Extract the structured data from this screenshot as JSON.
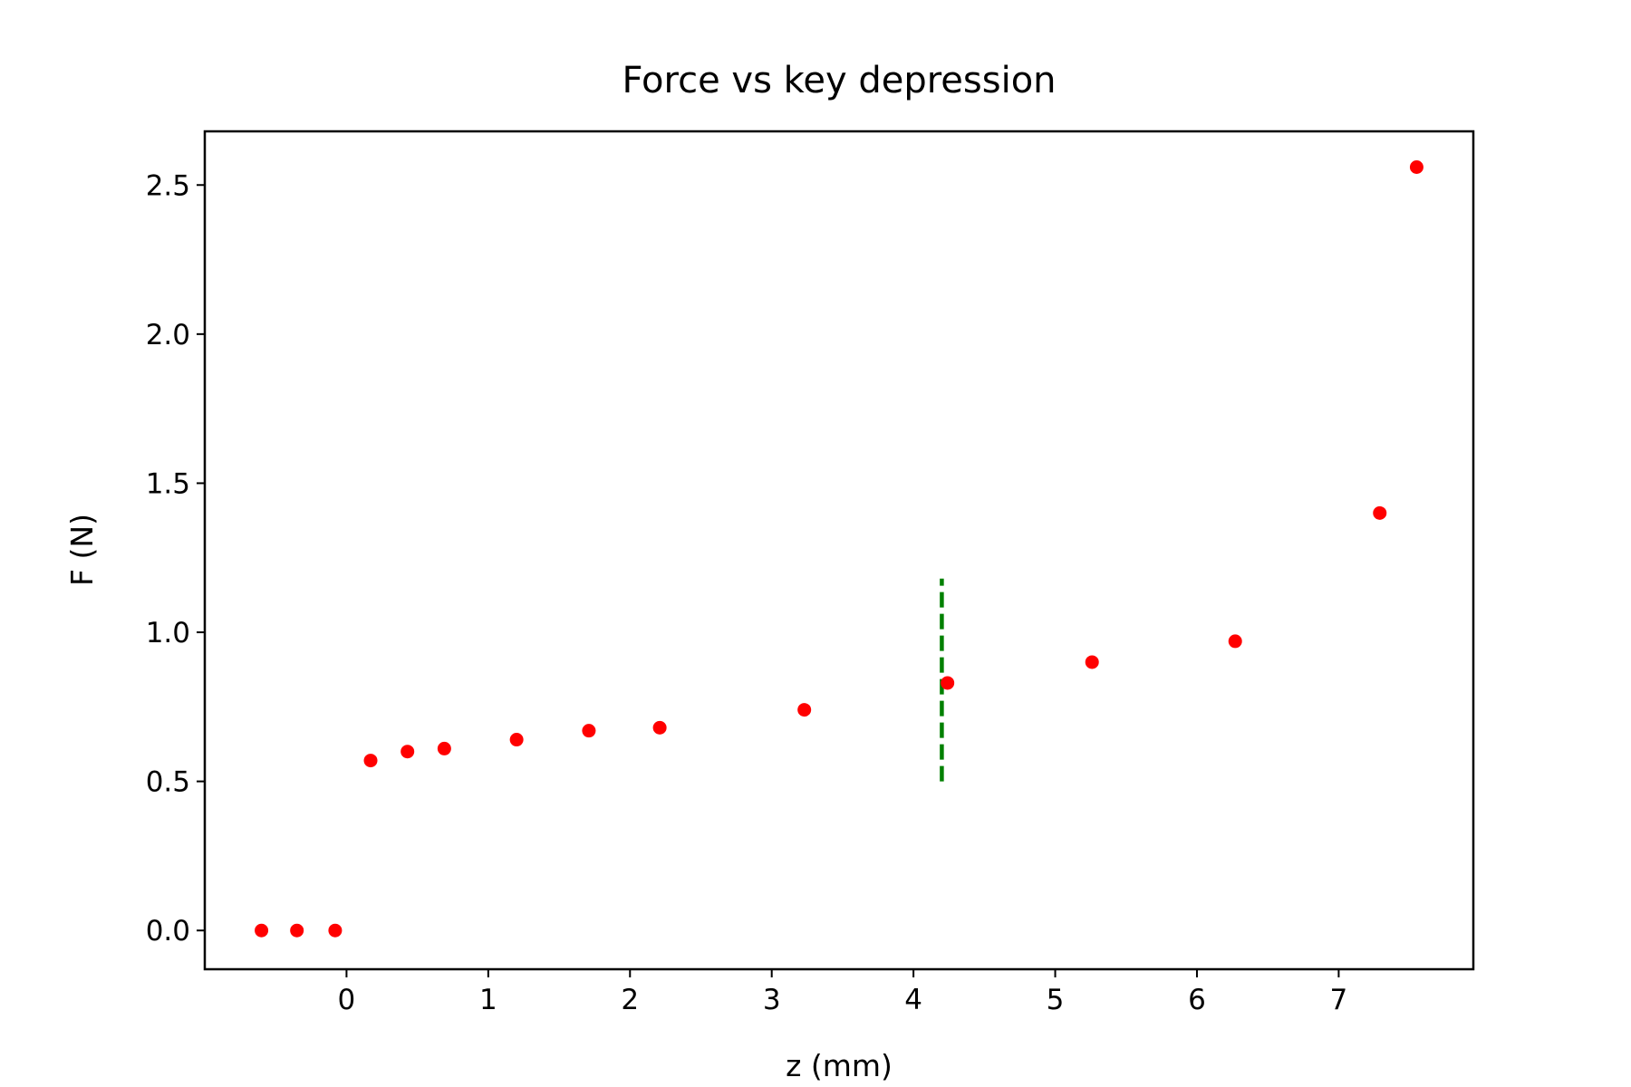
{
  "chart_data": {
    "type": "scatter",
    "title": "Force vs key depression",
    "xlabel": "z (mm)",
    "ylabel": "F (N)",
    "xlim": [
      -1.0,
      7.95
    ],
    "ylim": [
      -0.13,
      2.68
    ],
    "xticks": [
      0,
      1,
      2,
      3,
      4,
      5,
      6,
      7
    ],
    "xtick_labels": [
      "0",
      "1",
      "2",
      "3",
      "4",
      "5",
      "6",
      "7"
    ],
    "yticks": [
      0.0,
      0.5,
      1.0,
      1.5,
      2.0,
      2.5
    ],
    "ytick_labels": [
      "0.0",
      "0.5",
      "1.0",
      "1.5",
      "2.0",
      "2.5"
    ],
    "grid": false,
    "legend": false,
    "series": [
      {
        "color": "#ff0000",
        "marker": "circle",
        "x": [
          -0.6,
          -0.35,
          -0.08,
          0.17,
          0.43,
          0.69,
          1.2,
          1.71,
          2.21,
          3.23,
          4.24,
          5.26,
          6.27,
          7.29,
          7.55
        ],
        "y": [
          0.0,
          0.0,
          0.0,
          0.57,
          0.6,
          0.61,
          0.64,
          0.67,
          0.68,
          0.74,
          0.83,
          0.9,
          0.97,
          1.4,
          2.56
        ]
      }
    ],
    "annotations": [
      {
        "type": "vline",
        "x": 4.2,
        "ymin": 0.5,
        "ymax": 1.18,
        "color": "#008000",
        "style": "dashed"
      }
    ]
  }
}
